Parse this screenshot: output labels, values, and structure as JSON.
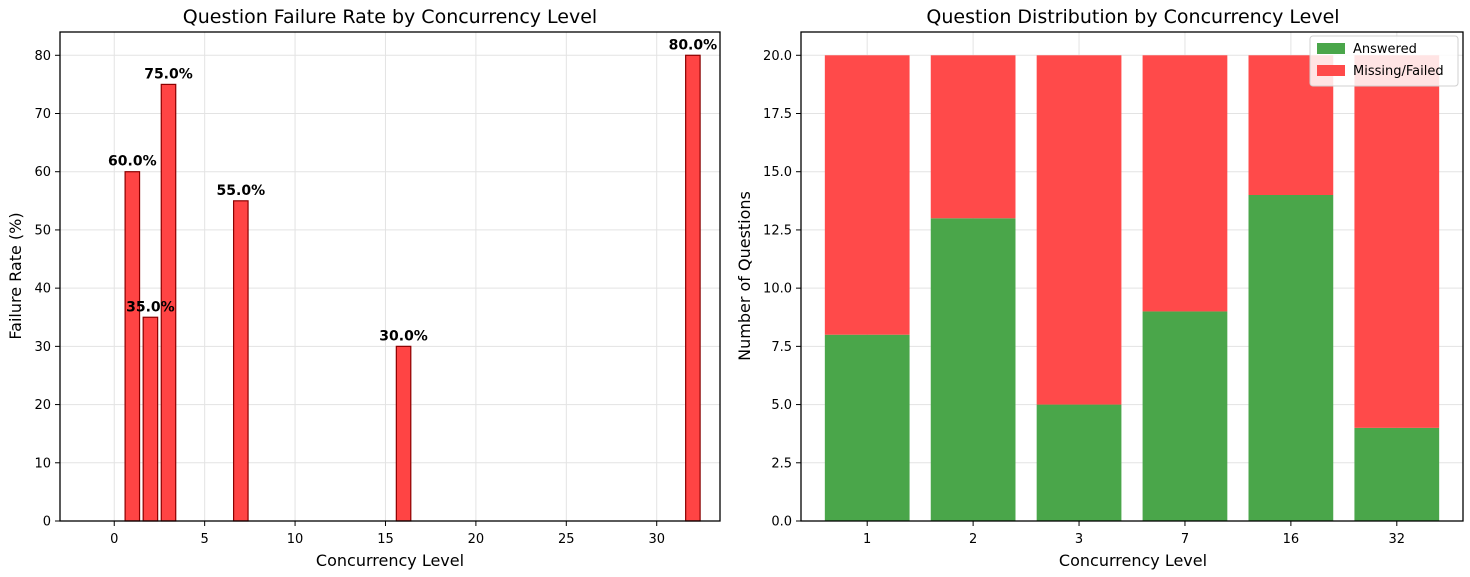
{
  "colors": {
    "failure_bar": "#ff4444",
    "failure_edge": "#8b0000",
    "answered": "#4aa64a",
    "missing": "#ff4a4a"
  },
  "chart_data": [
    {
      "type": "bar",
      "title": "Question Failure Rate by Concurrency Level",
      "xlabel": "Concurrency Level",
      "ylabel": "Failure Rate (%)",
      "x": [
        1,
        2,
        3,
        7,
        16,
        32
      ],
      "values": [
        60,
        35,
        75,
        55,
        30,
        80
      ],
      "data_labels": [
        "60.0%",
        "35.0%",
        "75.0%",
        "55.0%",
        "30.0%",
        "80.0%"
      ],
      "xlim": [
        -3,
        33.5
      ],
      "ylim": [
        0,
        84
      ],
      "xticks": [
        0,
        5,
        10,
        15,
        20,
        25,
        30
      ],
      "yticks": [
        0,
        10,
        20,
        30,
        40,
        50,
        60,
        70,
        80
      ],
      "grid": true
    },
    {
      "type": "bar",
      "stacked": true,
      "title": "Question Distribution by Concurrency Level",
      "xlabel": "Concurrency Level",
      "ylabel": "Number of Questions",
      "categories": [
        "1",
        "2",
        "3",
        "7",
        "16",
        "32"
      ],
      "series": [
        {
          "name": "Answered",
          "values": [
            8,
            13,
            5,
            9,
            14,
            4
          ]
        },
        {
          "name": "Missing/Failed",
          "values": [
            12,
            7,
            15,
            11,
            6,
            16
          ]
        }
      ],
      "ylim": [
        0,
        21
      ],
      "yticks": [
        "0.0",
        "2.5",
        "5.0",
        "7.5",
        "10.0",
        "12.5",
        "15.0",
        "17.5",
        "20.0"
      ],
      "legend": "top-right",
      "grid": true
    }
  ]
}
